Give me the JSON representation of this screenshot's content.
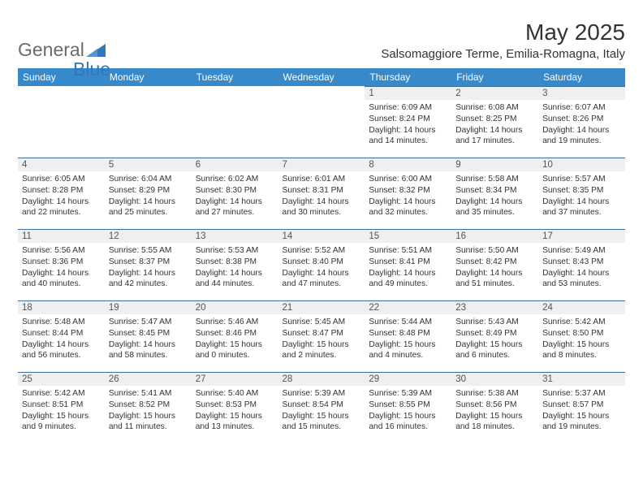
{
  "logo": {
    "text1": "General",
    "text2": "Blue",
    "color1": "#6b6b6b",
    "color2": "#2f78bf",
    "triangle_fill": "#2f78bf"
  },
  "header": {
    "month_title": "May 2025",
    "location": "Salsomaggiore Terme, Emilia-Romagna, Italy"
  },
  "theme": {
    "header_row_bg": "#3789c9",
    "header_row_text": "#ffffff",
    "daynum_bg": "#efefef",
    "daynum_border": "#3e6c99",
    "text_color": "#333333",
    "background": "#ffffff"
  },
  "day_headers": [
    "Sunday",
    "Monday",
    "Tuesday",
    "Wednesday",
    "Thursday",
    "Friday",
    "Saturday"
  ],
  "grid": {
    "rows": 5,
    "cols": 7,
    "first_day_col": 4,
    "days_in_month": 31
  },
  "days": {
    "1": {
      "sunrise": "6:09 AM",
      "sunset": "8:24 PM",
      "daylight": "14 hours and 14 minutes."
    },
    "2": {
      "sunrise": "6:08 AM",
      "sunset": "8:25 PM",
      "daylight": "14 hours and 17 minutes."
    },
    "3": {
      "sunrise": "6:07 AM",
      "sunset": "8:26 PM",
      "daylight": "14 hours and 19 minutes."
    },
    "4": {
      "sunrise": "6:05 AM",
      "sunset": "8:28 PM",
      "daylight": "14 hours and 22 minutes."
    },
    "5": {
      "sunrise": "6:04 AM",
      "sunset": "8:29 PM",
      "daylight": "14 hours and 25 minutes."
    },
    "6": {
      "sunrise": "6:02 AM",
      "sunset": "8:30 PM",
      "daylight": "14 hours and 27 minutes."
    },
    "7": {
      "sunrise": "6:01 AM",
      "sunset": "8:31 PM",
      "daylight": "14 hours and 30 minutes."
    },
    "8": {
      "sunrise": "6:00 AM",
      "sunset": "8:32 PM",
      "daylight": "14 hours and 32 minutes."
    },
    "9": {
      "sunrise": "5:58 AM",
      "sunset": "8:34 PM",
      "daylight": "14 hours and 35 minutes."
    },
    "10": {
      "sunrise": "5:57 AM",
      "sunset": "8:35 PM",
      "daylight": "14 hours and 37 minutes."
    },
    "11": {
      "sunrise": "5:56 AM",
      "sunset": "8:36 PM",
      "daylight": "14 hours and 40 minutes."
    },
    "12": {
      "sunrise": "5:55 AM",
      "sunset": "8:37 PM",
      "daylight": "14 hours and 42 minutes."
    },
    "13": {
      "sunrise": "5:53 AM",
      "sunset": "8:38 PM",
      "daylight": "14 hours and 44 minutes."
    },
    "14": {
      "sunrise": "5:52 AM",
      "sunset": "8:40 PM",
      "daylight": "14 hours and 47 minutes."
    },
    "15": {
      "sunrise": "5:51 AM",
      "sunset": "8:41 PM",
      "daylight": "14 hours and 49 minutes."
    },
    "16": {
      "sunrise": "5:50 AM",
      "sunset": "8:42 PM",
      "daylight": "14 hours and 51 minutes."
    },
    "17": {
      "sunrise": "5:49 AM",
      "sunset": "8:43 PM",
      "daylight": "14 hours and 53 minutes."
    },
    "18": {
      "sunrise": "5:48 AM",
      "sunset": "8:44 PM",
      "daylight": "14 hours and 56 minutes."
    },
    "19": {
      "sunrise": "5:47 AM",
      "sunset": "8:45 PM",
      "daylight": "14 hours and 58 minutes."
    },
    "20": {
      "sunrise": "5:46 AM",
      "sunset": "8:46 PM",
      "daylight": "15 hours and 0 minutes."
    },
    "21": {
      "sunrise": "5:45 AM",
      "sunset": "8:47 PM",
      "daylight": "15 hours and 2 minutes."
    },
    "22": {
      "sunrise": "5:44 AM",
      "sunset": "8:48 PM",
      "daylight": "15 hours and 4 minutes."
    },
    "23": {
      "sunrise": "5:43 AM",
      "sunset": "8:49 PM",
      "daylight": "15 hours and 6 minutes."
    },
    "24": {
      "sunrise": "5:42 AM",
      "sunset": "8:50 PM",
      "daylight": "15 hours and 8 minutes."
    },
    "25": {
      "sunrise": "5:42 AM",
      "sunset": "8:51 PM",
      "daylight": "15 hours and 9 minutes."
    },
    "26": {
      "sunrise": "5:41 AM",
      "sunset": "8:52 PM",
      "daylight": "15 hours and 11 minutes."
    },
    "27": {
      "sunrise": "5:40 AM",
      "sunset": "8:53 PM",
      "daylight": "15 hours and 13 minutes."
    },
    "28": {
      "sunrise": "5:39 AM",
      "sunset": "8:54 PM",
      "daylight": "15 hours and 15 minutes."
    },
    "29": {
      "sunrise": "5:39 AM",
      "sunset": "8:55 PM",
      "daylight": "15 hours and 16 minutes."
    },
    "30": {
      "sunrise": "5:38 AM",
      "sunset": "8:56 PM",
      "daylight": "15 hours and 18 minutes."
    },
    "31": {
      "sunrise": "5:37 AM",
      "sunset": "8:57 PM",
      "daylight": "15 hours and 19 minutes."
    }
  },
  "labels": {
    "sunrise": "Sunrise:",
    "sunset": "Sunset:",
    "daylight": "Daylight:"
  }
}
